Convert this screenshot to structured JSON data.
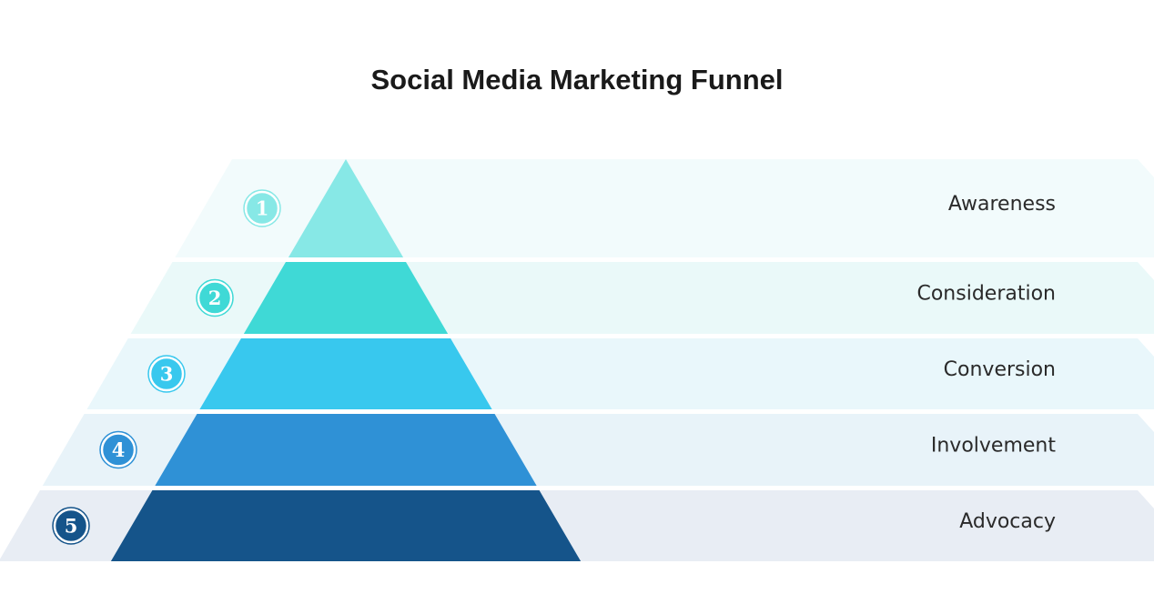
{
  "title": "Social Media Marketing Funnel",
  "levels": [
    {
      "number": "1",
      "label": "Awareness",
      "color": "#87e8e6",
      "band_color": "#f2fbfc"
    },
    {
      "number": "2",
      "label": "Consideration",
      "color": "#3fd9d6",
      "band_color": "#eaf9f9"
    },
    {
      "number": "3",
      "label": "Conversion",
      "color": "#38c8ee",
      "band_color": "#e9f7fb"
    },
    {
      "number": "4",
      "label": "Involvement",
      "color": "#2f91d6",
      "band_color": "#e8f3f9"
    },
    {
      "number": "5",
      "label": "Advocacy",
      "color": "#15548a",
      "band_color": "#e8edf4"
    }
  ]
}
